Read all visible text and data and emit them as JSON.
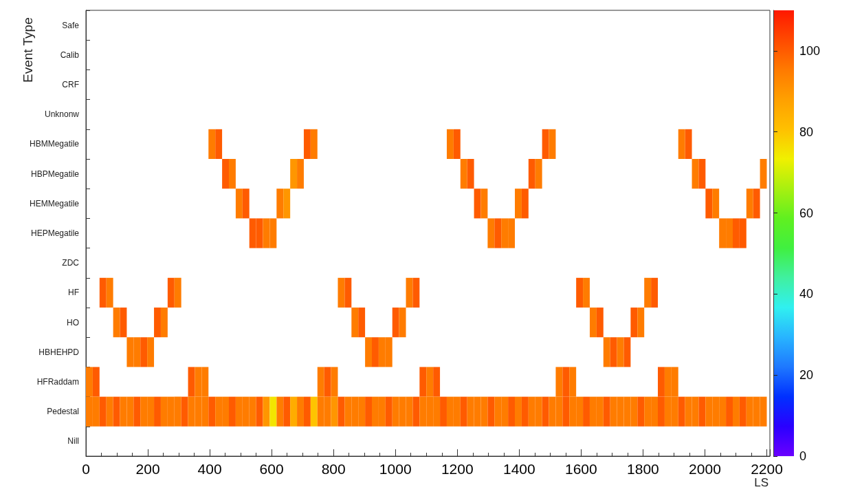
{
  "chart_data": {
    "type": "heatmap",
    "xlabel": "LS",
    "ylabel": "Event Type",
    "x": [
      11,
      33,
      55,
      77,
      99,
      121,
      143,
      165,
      187,
      209,
      231,
      253,
      275,
      297,
      319,
      341,
      363,
      385,
      407,
      429,
      451,
      473,
      495,
      517,
      539,
      561,
      583,
      605,
      627,
      649,
      671,
      693,
      715,
      737,
      759,
      781,
      803,
      825,
      847,
      869,
      891,
      913,
      935,
      957,
      979,
      1001,
      1023,
      1045,
      1067,
      1089,
      1111,
      1133,
      1155,
      1177,
      1199,
      1221,
      1243,
      1265,
      1287,
      1309,
      1331,
      1353,
      1375,
      1397,
      1419,
      1441,
      1463,
      1485,
      1507,
      1529,
      1551,
      1573,
      1595,
      1617,
      1639,
      1661,
      1683,
      1705,
      1727,
      1749,
      1771,
      1793,
      1815,
      1837,
      1859,
      1881,
      1903,
      1925,
      1947,
      1969,
      1991,
      2013,
      2035,
      2057,
      2079,
      2101,
      2123,
      2145,
      2167,
      2189
    ],
    "xlim": [
      0,
      2210
    ],
    "xticks": [
      0,
      200,
      400,
      600,
      800,
      1000,
      1200,
      1400,
      1600,
      1800,
      2000,
      2200
    ],
    "y_categories": [
      "Safe",
      "Calib",
      "CRF",
      "Unknonw",
      "HBMMegatile",
      "HBPMegatile",
      "HEMMegatile",
      "HEPMegatile",
      "ZDC",
      "HF",
      "HO",
      "HBHEHPD",
      "HFRaddam",
      "Pedestal",
      "Nill"
    ],
    "clim": [
      0,
      110
    ],
    "cticks": [
      0,
      20,
      40,
      60,
      80,
      100
    ],
    "cells": [
      [
        null,
        null,
        null,
        null,
        null,
        null,
        null,
        null,
        null,
        null,
        null,
        null,
        null,
        null,
        null,
        null,
        null,
        null,
        null,
        null,
        null,
        null,
        null,
        null,
        null,
        null,
        null,
        null,
        null,
        null,
        null,
        null,
        null,
        null,
        null,
        null,
        null,
        null,
        null,
        null,
        null,
        null,
        null,
        null,
        null,
        null,
        null,
        null,
        null,
        null,
        null,
        null,
        null,
        null,
        null,
        null,
        null,
        null,
        null,
        null,
        null,
        null,
        null,
        null,
        null,
        null,
        null,
        null,
        null,
        null,
        null,
        null,
        null,
        null,
        null,
        null,
        null,
        null,
        null,
        null,
        null,
        null,
        null,
        null,
        null,
        null,
        null,
        null,
        null,
        null,
        null,
        null,
        null,
        null,
        null,
        null,
        null,
        null,
        null,
        null
      ],
      [
        null,
        null,
        null,
        null,
        null,
        null,
        null,
        null,
        null,
        null,
        null,
        null,
        null,
        null,
        null,
        null,
        null,
        null,
        null,
        null,
        null,
        null,
        null,
        null,
        null,
        null,
        null,
        null,
        null,
        null,
        null,
        null,
        null,
        null,
        null,
        null,
        null,
        null,
        null,
        null,
        null,
        null,
        null,
        null,
        null,
        null,
        null,
        null,
        null,
        null,
        null,
        null,
        null,
        null,
        null,
        null,
        null,
        null,
        null,
        null,
        null,
        null,
        null,
        null,
        null,
        null,
        null,
        null,
        null,
        null,
        null,
        null,
        null,
        null,
        null,
        null,
        null,
        null,
        null,
        null,
        null,
        null,
        null,
        null,
        null,
        null,
        null,
        null,
        null,
        null,
        null,
        null,
        null,
        null,
        null,
        null,
        null,
        null,
        null,
        null
      ],
      [
        null,
        null,
        null,
        null,
        null,
        null,
        null,
        null,
        null,
        null,
        null,
        null,
        null,
        null,
        null,
        null,
        null,
        null,
        null,
        null,
        null,
        null,
        null,
        null,
        null,
        null,
        null,
        null,
        null,
        null,
        null,
        null,
        null,
        null,
        null,
        null,
        null,
        null,
        null,
        null,
        null,
        null,
        null,
        null,
        null,
        null,
        null,
        null,
        null,
        null,
        null,
        null,
        null,
        null,
        null,
        null,
        null,
        null,
        null,
        null,
        null,
        null,
        null,
        null,
        null,
        null,
        null,
        null,
        null,
        null,
        null,
        null,
        null,
        null,
        null,
        null,
        null,
        null,
        null,
        null,
        null,
        null,
        null,
        null,
        null,
        null,
        null,
        null,
        null,
        null,
        null,
        null,
        null,
        null,
        null,
        null,
        null,
        null,
        null,
        null
      ],
      [
        null,
        null,
        null,
        null,
        null,
        null,
        null,
        null,
        null,
        null,
        null,
        null,
        null,
        null,
        null,
        null,
        null,
        null,
        null,
        null,
        null,
        null,
        null,
        null,
        null,
        null,
        null,
        null,
        null,
        null,
        null,
        null,
        null,
        null,
        null,
        null,
        null,
        null,
        null,
        null,
        null,
        null,
        null,
        null,
        null,
        null,
        null,
        null,
        null,
        null,
        null,
        null,
        null,
        null,
        null,
        null,
        null,
        null,
        null,
        null,
        null,
        null,
        null,
        null,
        null,
        null,
        null,
        null,
        null,
        null,
        null,
        null,
        null,
        null,
        null,
        null,
        null,
        null,
        null,
        null,
        null,
        null,
        null,
        null,
        null,
        null,
        null,
        null,
        null,
        null,
        null,
        null,
        null,
        null,
        null,
        null,
        null,
        null,
        null,
        null
      ],
      [
        null,
        null,
        null,
        null,
        null,
        null,
        null,
        null,
        null,
        null,
        null,
        null,
        null,
        null,
        null,
        null,
        null,
        null,
        95,
        100,
        null,
        null,
        null,
        null,
        null,
        null,
        null,
        null,
        null,
        null,
        null,
        null,
        100,
        95,
        null,
        null,
        null,
        null,
        null,
        null,
        null,
        null,
        null,
        null,
        null,
        null,
        null,
        null,
        null,
        null,
        null,
        null,
        null,
        95,
        100,
        null,
        null,
        null,
        null,
        null,
        null,
        null,
        null,
        null,
        null,
        null,
        null,
        100,
        95,
        null,
        null,
        null,
        null,
        null,
        null,
        null,
        null,
        null,
        null,
        null,
        null,
        null,
        null,
        null,
        null,
        null,
        null,
        95,
        100,
        null,
        null,
        null,
        null,
        null,
        null,
        null,
        null,
        null,
        null,
        null
      ],
      [
        null,
        null,
        null,
        null,
        null,
        null,
        null,
        null,
        null,
        null,
        null,
        null,
        null,
        null,
        null,
        null,
        null,
        null,
        null,
        null,
        100,
        95,
        null,
        null,
        null,
        null,
        null,
        null,
        null,
        null,
        90,
        95,
        null,
        null,
        null,
        null,
        null,
        null,
        null,
        null,
        null,
        null,
        null,
        null,
        null,
        null,
        null,
        null,
        null,
        null,
        null,
        null,
        null,
        null,
        null,
        95,
        100,
        null,
        null,
        null,
        null,
        null,
        null,
        null,
        null,
        100,
        95,
        null,
        null,
        null,
        null,
        null,
        null,
        null,
        null,
        null,
        null,
        null,
        null,
        null,
        null,
        null,
        null,
        null,
        null,
        null,
        null,
        null,
        null,
        95,
        100,
        null,
        null,
        null,
        null,
        null,
        null,
        null,
        null,
        95
      ],
      [
        null,
        null,
        null,
        null,
        null,
        null,
        null,
        null,
        null,
        null,
        null,
        null,
        null,
        null,
        null,
        null,
        null,
        null,
        null,
        null,
        null,
        null,
        95,
        100,
        null,
        null,
        null,
        null,
        95,
        90,
        null,
        null,
        null,
        null,
        null,
        null,
        null,
        null,
        null,
        null,
        null,
        null,
        null,
        null,
        null,
        null,
        null,
        null,
        null,
        null,
        null,
        null,
        null,
        null,
        null,
        null,
        null,
        100,
        95,
        null,
        null,
        null,
        null,
        95,
        100,
        null,
        null,
        null,
        null,
        null,
        null,
        null,
        null,
        null,
        null,
        null,
        null,
        null,
        null,
        null,
        null,
        null,
        null,
        null,
        null,
        null,
        null,
        null,
        null,
        null,
        null,
        100,
        95,
        null,
        null,
        null,
        null,
        95,
        100,
        null
      ],
      [
        null,
        null,
        null,
        null,
        null,
        null,
        null,
        null,
        null,
        null,
        null,
        null,
        null,
        null,
        null,
        null,
        null,
        null,
        null,
        null,
        null,
        null,
        null,
        null,
        100,
        100,
        95,
        95,
        null,
        null,
        null,
        null,
        null,
        null,
        null,
        null,
        null,
        null,
        null,
        null,
        null,
        null,
        null,
        null,
        null,
        null,
        null,
        null,
        null,
        null,
        null,
        null,
        null,
        null,
        null,
        null,
        null,
        null,
        null,
        95,
        100,
        95,
        95,
        null,
        null,
        null,
        null,
        null,
        null,
        null,
        null,
        null,
        null,
        null,
        null,
        null,
        null,
        null,
        null,
        null,
        null,
        null,
        null,
        null,
        null,
        null,
        null,
        null,
        null,
        null,
        null,
        null,
        null,
        95,
        95,
        100,
        100,
        null,
        null,
        null
      ],
      [
        null,
        null,
        null,
        null,
        null,
        null,
        null,
        null,
        null,
        null,
        null,
        null,
        null,
        null,
        null,
        null,
        null,
        null,
        null,
        null,
        null,
        null,
        null,
        null,
        null,
        null,
        null,
        null,
        null,
        null,
        null,
        null,
        null,
        null,
        null,
        null,
        null,
        null,
        null,
        null,
        null,
        null,
        null,
        null,
        null,
        null,
        null,
        null,
        null,
        null,
        null,
        null,
        null,
        null,
        null,
        null,
        null,
        null,
        null,
        null,
        null,
        null,
        null,
        null,
        null,
        null,
        null,
        null,
        null,
        null,
        null,
        null,
        null,
        null,
        null,
        null,
        null,
        null,
        null,
        null,
        null,
        null,
        null,
        null,
        null,
        null,
        null,
        null,
        null,
        null,
        null,
        null,
        null,
        null,
        null,
        null,
        null,
        null,
        null,
        null
      ],
      [
        null,
        null,
        100,
        95,
        null,
        null,
        null,
        null,
        null,
        null,
        null,
        null,
        100,
        95,
        null,
        null,
        null,
        null,
        null,
        null,
        null,
        null,
        null,
        null,
        null,
        null,
        null,
        null,
        null,
        null,
        null,
        null,
        null,
        null,
        null,
        null,
        null,
        95,
        100,
        null,
        null,
        null,
        null,
        null,
        null,
        null,
        null,
        95,
        100,
        null,
        null,
        null,
        null,
        null,
        null,
        null,
        null,
        null,
        null,
        null,
        null,
        null,
        null,
        null,
        null,
        null,
        null,
        null,
        null,
        null,
        null,
        null,
        100,
        95,
        null,
        null,
        null,
        null,
        null,
        null,
        null,
        null,
        95,
        100,
        null,
        null,
        null,
        null,
        null,
        null,
        null,
        null,
        null,
        null,
        null,
        null,
        null,
        null,
        null,
        null
      ],
      [
        null,
        null,
        null,
        null,
        95,
        100,
        null,
        null,
        null,
        null,
        100,
        95,
        null,
        null,
        null,
        null,
        null,
        null,
        null,
        null,
        null,
        null,
        null,
        null,
        null,
        null,
        null,
        null,
        null,
        null,
        null,
        null,
        null,
        null,
        null,
        null,
        null,
        null,
        null,
        95,
        100,
        null,
        null,
        null,
        null,
        100,
        95,
        null,
        null,
        null,
        null,
        null,
        null,
        null,
        null,
        null,
        null,
        null,
        null,
        null,
        null,
        null,
        null,
        null,
        null,
        null,
        null,
        null,
        null,
        null,
        null,
        null,
        null,
        null,
        95,
        100,
        null,
        null,
        null,
        null,
        100,
        95,
        null,
        null,
        null,
        null,
        null,
        null,
        null,
        null,
        null,
        null,
        null,
        null,
        null,
        null,
        null,
        null,
        null,
        null
      ],
      [
        null,
        null,
        null,
        null,
        null,
        null,
        95,
        95,
        100,
        95,
        null,
        null,
        null,
        null,
        null,
        null,
        null,
        null,
        null,
        null,
        null,
        null,
        null,
        null,
        null,
        null,
        null,
        null,
        null,
        null,
        null,
        null,
        null,
        null,
        null,
        null,
        null,
        null,
        null,
        null,
        null,
        95,
        100,
        95,
        95,
        null,
        null,
        null,
        null,
        null,
        null,
        null,
        null,
        null,
        null,
        null,
        null,
        null,
        null,
        null,
        null,
        null,
        null,
        null,
        null,
        null,
        null,
        null,
        null,
        null,
        null,
        null,
        null,
        null,
        null,
        null,
        95,
        100,
        95,
        100,
        null,
        null,
        null,
        null,
        null,
        null,
        null,
        null,
        null,
        null,
        null,
        null,
        null,
        null,
        null,
        null,
        null,
        null,
        null,
        null
      ],
      [
        95,
        100,
        null,
        null,
        null,
        null,
        null,
        null,
        null,
        null,
        null,
        null,
        null,
        null,
        null,
        100,
        95,
        95,
        null,
        null,
        null,
        null,
        null,
        null,
        null,
        null,
        null,
        null,
        null,
        null,
        null,
        null,
        null,
        null,
        95,
        100,
        95,
        null,
        null,
        null,
        null,
        null,
        null,
        null,
        null,
        null,
        null,
        null,
        null,
        100,
        95,
        100,
        null,
        null,
        null,
        null,
        null,
        null,
        null,
        null,
        null,
        null,
        null,
        null,
        null,
        null,
        null,
        null,
        null,
        95,
        100,
        95,
        null,
        null,
        null,
        null,
        null,
        null,
        null,
        null,
        null,
        null,
        null,
        null,
        100,
        95,
        95,
        null,
        null,
        null,
        null,
        null,
        null,
        null,
        null,
        null,
        null,
        null,
        null,
        null
      ],
      [
        95,
        95,
        100,
        95,
        100,
        95,
        95,
        100,
        95,
        95,
        100,
        95,
        95,
        95,
        100,
        95,
        95,
        95,
        100,
        95,
        95,
        100,
        95,
        95,
        95,
        100,
        90,
        75,
        95,
        100,
        85,
        95,
        100,
        80,
        95,
        95,
        90,
        100,
        95,
        95,
        95,
        100,
        95,
        95,
        100,
        95,
        95,
        95,
        100,
        95,
        95,
        95,
        100,
        95,
        95,
        100,
        95,
        95,
        95,
        100,
        95,
        95,
        100,
        95,
        100,
        95,
        95,
        100,
        95,
        95,
        100,
        95,
        95,
        100,
        95,
        95,
        100,
        95,
        95,
        95,
        95,
        100,
        95,
        95,
        100,
        95,
        95,
        100,
        95,
        95,
        100,
        95,
        95,
        95,
        100,
        95,
        100,
        95,
        95,
        95
      ],
      [
        null,
        null,
        null,
        null,
        null,
        null,
        null,
        null,
        null,
        null,
        null,
        null,
        null,
        null,
        null,
        null,
        null,
        null,
        null,
        null,
        null,
        null,
        null,
        null,
        null,
        null,
        null,
        null,
        null,
        null,
        null,
        null,
        null,
        null,
        null,
        null,
        null,
        null,
        null,
        null,
        null,
        null,
        null,
        null,
        null,
        null,
        null,
        null,
        null,
        null,
        null,
        null,
        null,
        null,
        null,
        null,
        null,
        null,
        null,
        null,
        null,
        null,
        null,
        null,
        null,
        null,
        null,
        null,
        null,
        null,
        null,
        null,
        null,
        null,
        null,
        null,
        null,
        null,
        null,
        null,
        null,
        null,
        null,
        null,
        null,
        null,
        null,
        null,
        null,
        null,
        null,
        null,
        null,
        null,
        null,
        null,
        null,
        null,
        null,
        null
      ]
    ]
  }
}
